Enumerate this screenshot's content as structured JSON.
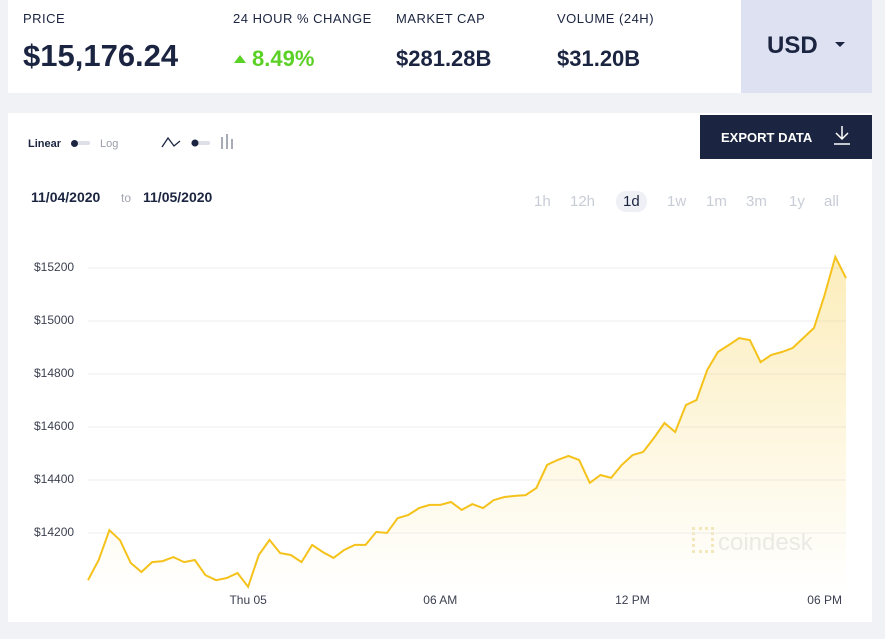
{
  "header": {
    "stats": [
      {
        "label": "PRICE",
        "value": "$15,176.24"
      },
      {
        "label": "24 HOUR % CHANGE",
        "value": "8.49%"
      },
      {
        "label": "MARKET CAP",
        "value": "$281.28B"
      },
      {
        "label": "VOLUME (24H)",
        "value": "$31.20B"
      }
    ],
    "currency": "USD"
  },
  "controls": {
    "scale_options": [
      "Linear",
      "Log"
    ],
    "export": "EXPORT DATA",
    "date_from": "11/04/2020",
    "date_sep": "to",
    "date_to": "11/05/2020",
    "ranges": [
      "1h",
      "12h",
      "1d",
      "1w",
      "1m",
      "3m",
      "1y",
      "all"
    ],
    "selected_range": "1d"
  },
  "watermark": "coindesk",
  "chart_data": {
    "type": "line",
    "color": "#f5c21b",
    "grid": true,
    "categories": [
      null,
      null,
      null,
      null,
      null,
      null,
      null,
      null,
      null,
      null,
      null,
      null,
      null,
      null,
      null,
      "Thu 05",
      null,
      null,
      null,
      null,
      null,
      null,
      null,
      null,
      null,
      null,
      null,
      null,
      null,
      null,
      null,
      null,
      null,
      "06 AM",
      null,
      null,
      null,
      null,
      null,
      null,
      null,
      null,
      null,
      null,
      null,
      null,
      null,
      null,
      null,
      null,
      null,
      "12 PM",
      null,
      null,
      null,
      null,
      null,
      null,
      null,
      null,
      null,
      null,
      null,
      null,
      null,
      null,
      null,
      null,
      null,
      "06 PM",
      null,
      null
    ],
    "values": [
      14022,
      14098,
      14211,
      14173,
      14087,
      14053,
      14090,
      14094,
      14109,
      14090,
      14098,
      14041,
      14022,
      14030,
      14049,
      13997,
      14117,
      14174,
      14124,
      14117,
      14090,
      14155,
      14128,
      14106,
      14136,
      14155,
      14155,
      14204,
      14200,
      14256,
      14268,
      14294,
      14306,
      14306,
      14317,
      14287,
      14309,
      14294,
      14324,
      14336,
      14340,
      14343,
      14370,
      14457,
      14476,
      14491,
      14476,
      14389,
      14419,
      14408,
      14457,
      14494,
      14506,
      14558,
      14615,
      14581,
      14683,
      14702,
      14815,
      14883,
      14909,
      14936,
      14928,
      14845,
      14872,
      14883,
      14898,
      14936,
      14974,
      15098,
      15242,
      15162
    ],
    "ylim": [
      13980,
      15300
    ],
    "yticks": [
      {
        "value": 14200,
        "label": "$14200"
      },
      {
        "value": 14400,
        "label": "$14400"
      },
      {
        "value": 14600,
        "label": "$14600"
      },
      {
        "value": 14800,
        "label": "$14800"
      },
      {
        "value": 15000,
        "label": "$15000"
      },
      {
        "value": 15200,
        "label": "$15200"
      }
    ]
  }
}
